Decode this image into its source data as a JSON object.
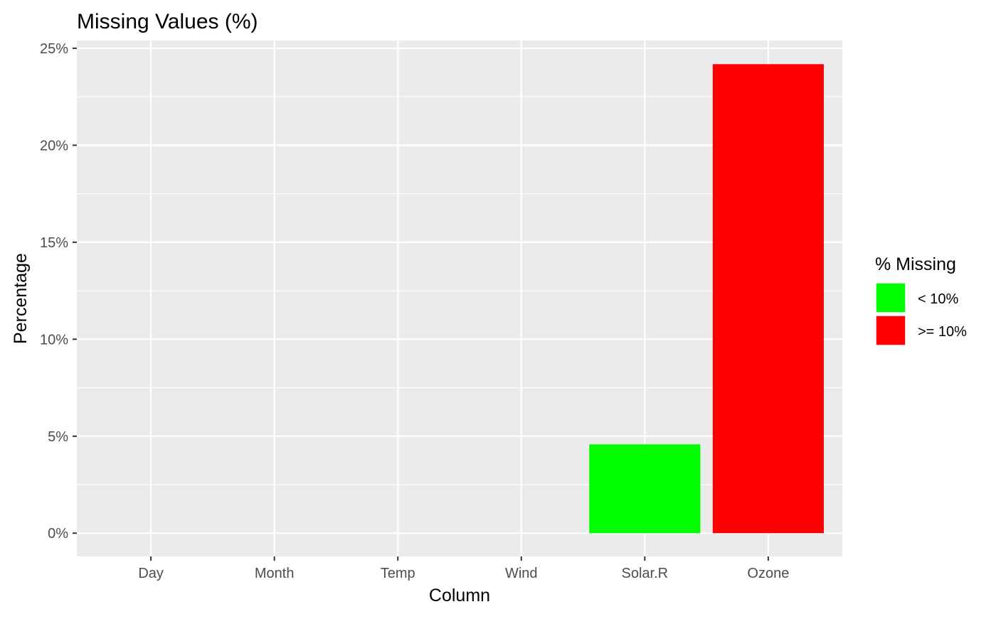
{
  "chart_data": {
    "type": "bar",
    "title": "Missing Values (%)",
    "xlabel": "Column",
    "ylabel": "Percentage",
    "categories": [
      "Day",
      "Month",
      "Temp",
      "Wind",
      "Solar.R",
      "Ozone"
    ],
    "values": [
      0,
      0,
      0,
      0,
      4.58,
      24.18
    ],
    "fill_groups": [
      "< 10%",
      "< 10%",
      "< 10%",
      "< 10%",
      "< 10%",
      ">= 10%"
    ],
    "ylim": [
      -1.2,
      25.4
    ],
    "y_ticks": [
      0,
      5,
      10,
      15,
      20,
      25
    ],
    "y_tick_labels": [
      "0%",
      "5%",
      "10%",
      "15%",
      "20%",
      "25%"
    ],
    "grid": true,
    "legend": {
      "title": "% Missing",
      "position": "right",
      "entries": [
        {
          "label": "< 10%",
          "color": "#00ff00"
        },
        {
          "label": ">= 10%",
          "color": "#ff0000"
        }
      ]
    },
    "colors": {
      "panel": "#ebebeb",
      "grid": "#ffffff",
      "axis_text": "#4d4d4d",
      "tick": "#333333"
    }
  }
}
